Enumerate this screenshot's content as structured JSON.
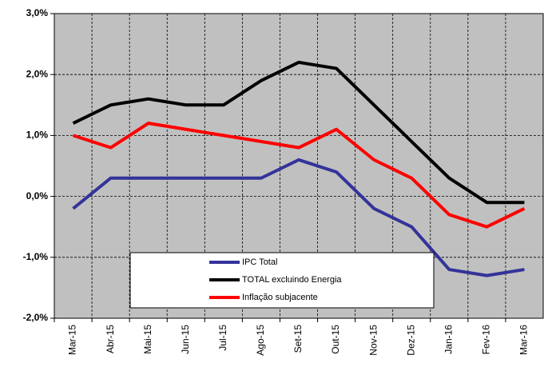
{
  "chart_data": {
    "type": "line",
    "categories": [
      "Mar-15",
      "Abr-15",
      "Mai-15",
      "Jun-15",
      "Jul-15",
      "Ago-15",
      "Set-15",
      "Out-15",
      "Nov-15",
      "Dez-15",
      "Jan-16",
      "Fev-16",
      "Mar-16"
    ],
    "series": [
      {
        "name": "IPC Total",
        "color": "#333399",
        "values": [
          -0.2,
          0.3,
          0.3,
          0.3,
          0.3,
          0.3,
          0.6,
          0.4,
          -0.2,
          -0.5,
          -1.2,
          -1.3,
          -1.2
        ]
      },
      {
        "name": "TOTAL excluindo Energia",
        "color": "#000000",
        "values": [
          1.2,
          1.5,
          1.6,
          1.5,
          1.5,
          1.9,
          2.2,
          2.1,
          1.5,
          0.9,
          0.3,
          -0.1,
          -0.1
        ]
      },
      {
        "name": "Inflação subjacente",
        "color": "#ff0000",
        "values": [
          1.0,
          0.8,
          1.2,
          1.1,
          1.0,
          0.9,
          0.8,
          1.1,
          0.6,
          0.3,
          -0.3,
          -0.5,
          -0.2
        ]
      }
    ],
    "ylim": [
      -2,
      3
    ],
    "yticks": [
      {
        "value": -2,
        "label": "-2,0%"
      },
      {
        "value": -1,
        "label": "-1,0%"
      },
      {
        "value": 0,
        "label": "0,0%"
      },
      {
        "value": 1,
        "label": "1,0%"
      },
      {
        "value": 2,
        "label": "2,0%"
      },
      {
        "value": 3,
        "label": "3,0%"
      }
    ],
    "grid": true,
    "legend": "bottom"
  }
}
